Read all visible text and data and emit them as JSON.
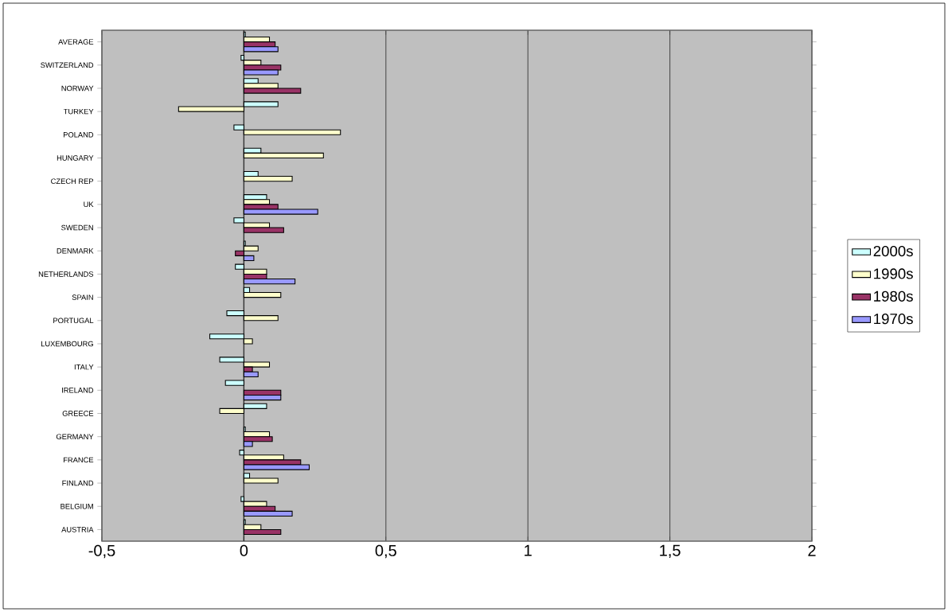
{
  "chart_data": {
    "type": "bar",
    "orientation": "horizontal",
    "categories": [
      "AVERAGE",
      "SWITZERLAND",
      "NORWAY",
      "TURKEY",
      "POLAND",
      "HUNGARY",
      "CZECH REP",
      "UK",
      "SWEDEN",
      "DENMARK",
      "NETHERLANDS",
      "SPAIN",
      "PORTUGAL",
      "LUXEMBOURG",
      "ITALY",
      "IRELAND",
      "GREECE",
      "GERMANY",
      "FRANCE",
      "FINLAND",
      "BELGIUM",
      "AUSTRIA"
    ],
    "series": [
      {
        "name": "2000s",
        "color": "#ccffff",
        "values": [
          0.005,
          -0.01,
          0.05,
          0.12,
          -0.035,
          0.06,
          0.05,
          0.08,
          -0.035,
          0.005,
          -0.03,
          0.02,
          -0.06,
          -0.12,
          -0.085,
          -0.065,
          0.08,
          0.005,
          -0.015,
          0.02,
          -0.01,
          0.005
        ]
      },
      {
        "name": "1990s",
        "color": "#ffffcc",
        "values": [
          0.09,
          0.06,
          0.12,
          -0.23,
          0.34,
          0.28,
          0.17,
          0.09,
          0.09,
          0.05,
          0.08,
          0.13,
          0.12,
          0.03,
          0.09,
          null,
          -0.085,
          0.09,
          0.14,
          0.12,
          0.08,
          0.06
        ]
      },
      {
        "name": "1980s",
        "color": "#993366",
        "values": [
          0.11,
          0.13,
          0.2,
          null,
          null,
          null,
          null,
          0.12,
          0.14,
          -0.03,
          0.08,
          null,
          null,
          null,
          0.03,
          0.13,
          null,
          0.1,
          0.2,
          null,
          0.11,
          0.13
        ]
      },
      {
        "name": "1970s",
        "color": "#9999ff",
        "values": [
          0.12,
          0.12,
          null,
          null,
          null,
          null,
          null,
          0.26,
          null,
          0.035,
          0.18,
          null,
          null,
          null,
          0.05,
          0.13,
          null,
          0.03,
          0.23,
          null,
          0.17,
          null
        ]
      }
    ],
    "xlim": [
      -0.5,
      2
    ],
    "xticks": [
      {
        "value": -0.5,
        "label": "-0,5"
      },
      0,
      {
        "value": 0.5,
        "label": "0,5"
      },
      1,
      {
        "value": 1.5,
        "label": "1,5"
      },
      2
    ],
    "grid": "x",
    "legend": "right"
  }
}
